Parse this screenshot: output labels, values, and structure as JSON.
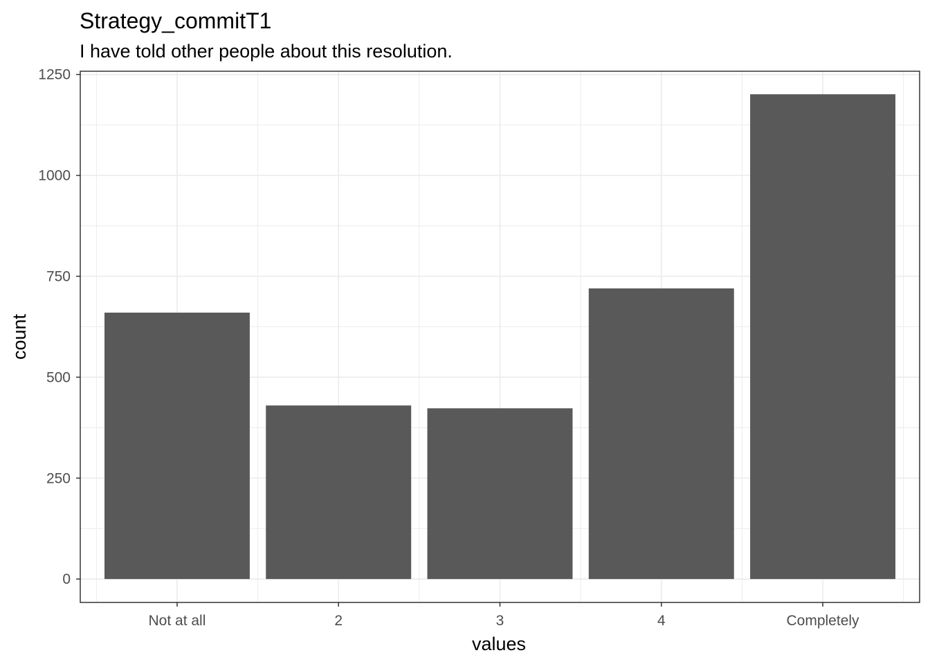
{
  "chart_data": {
    "type": "bar",
    "title": "Strategy_commitT1",
    "subtitle": "I have told other people about this resolution.",
    "xlabel": "values",
    "ylabel": "count",
    "categories": [
      "Not at all",
      "2",
      "3",
      "4",
      "Completely"
    ],
    "values": [
      660,
      430,
      423,
      720,
      1201
    ],
    "ylim": [
      -58,
      1258
    ],
    "y_ticks": [
      0,
      250,
      500,
      750,
      1000,
      1250
    ],
    "y_tick_labels": [
      "0",
      "250",
      "500",
      "750",
      "1000",
      "1250"
    ],
    "grid": true,
    "bar_color": "#595959",
    "grid_color": "#ebebeb",
    "panel_border_color": "#333333",
    "theme": "bw"
  }
}
